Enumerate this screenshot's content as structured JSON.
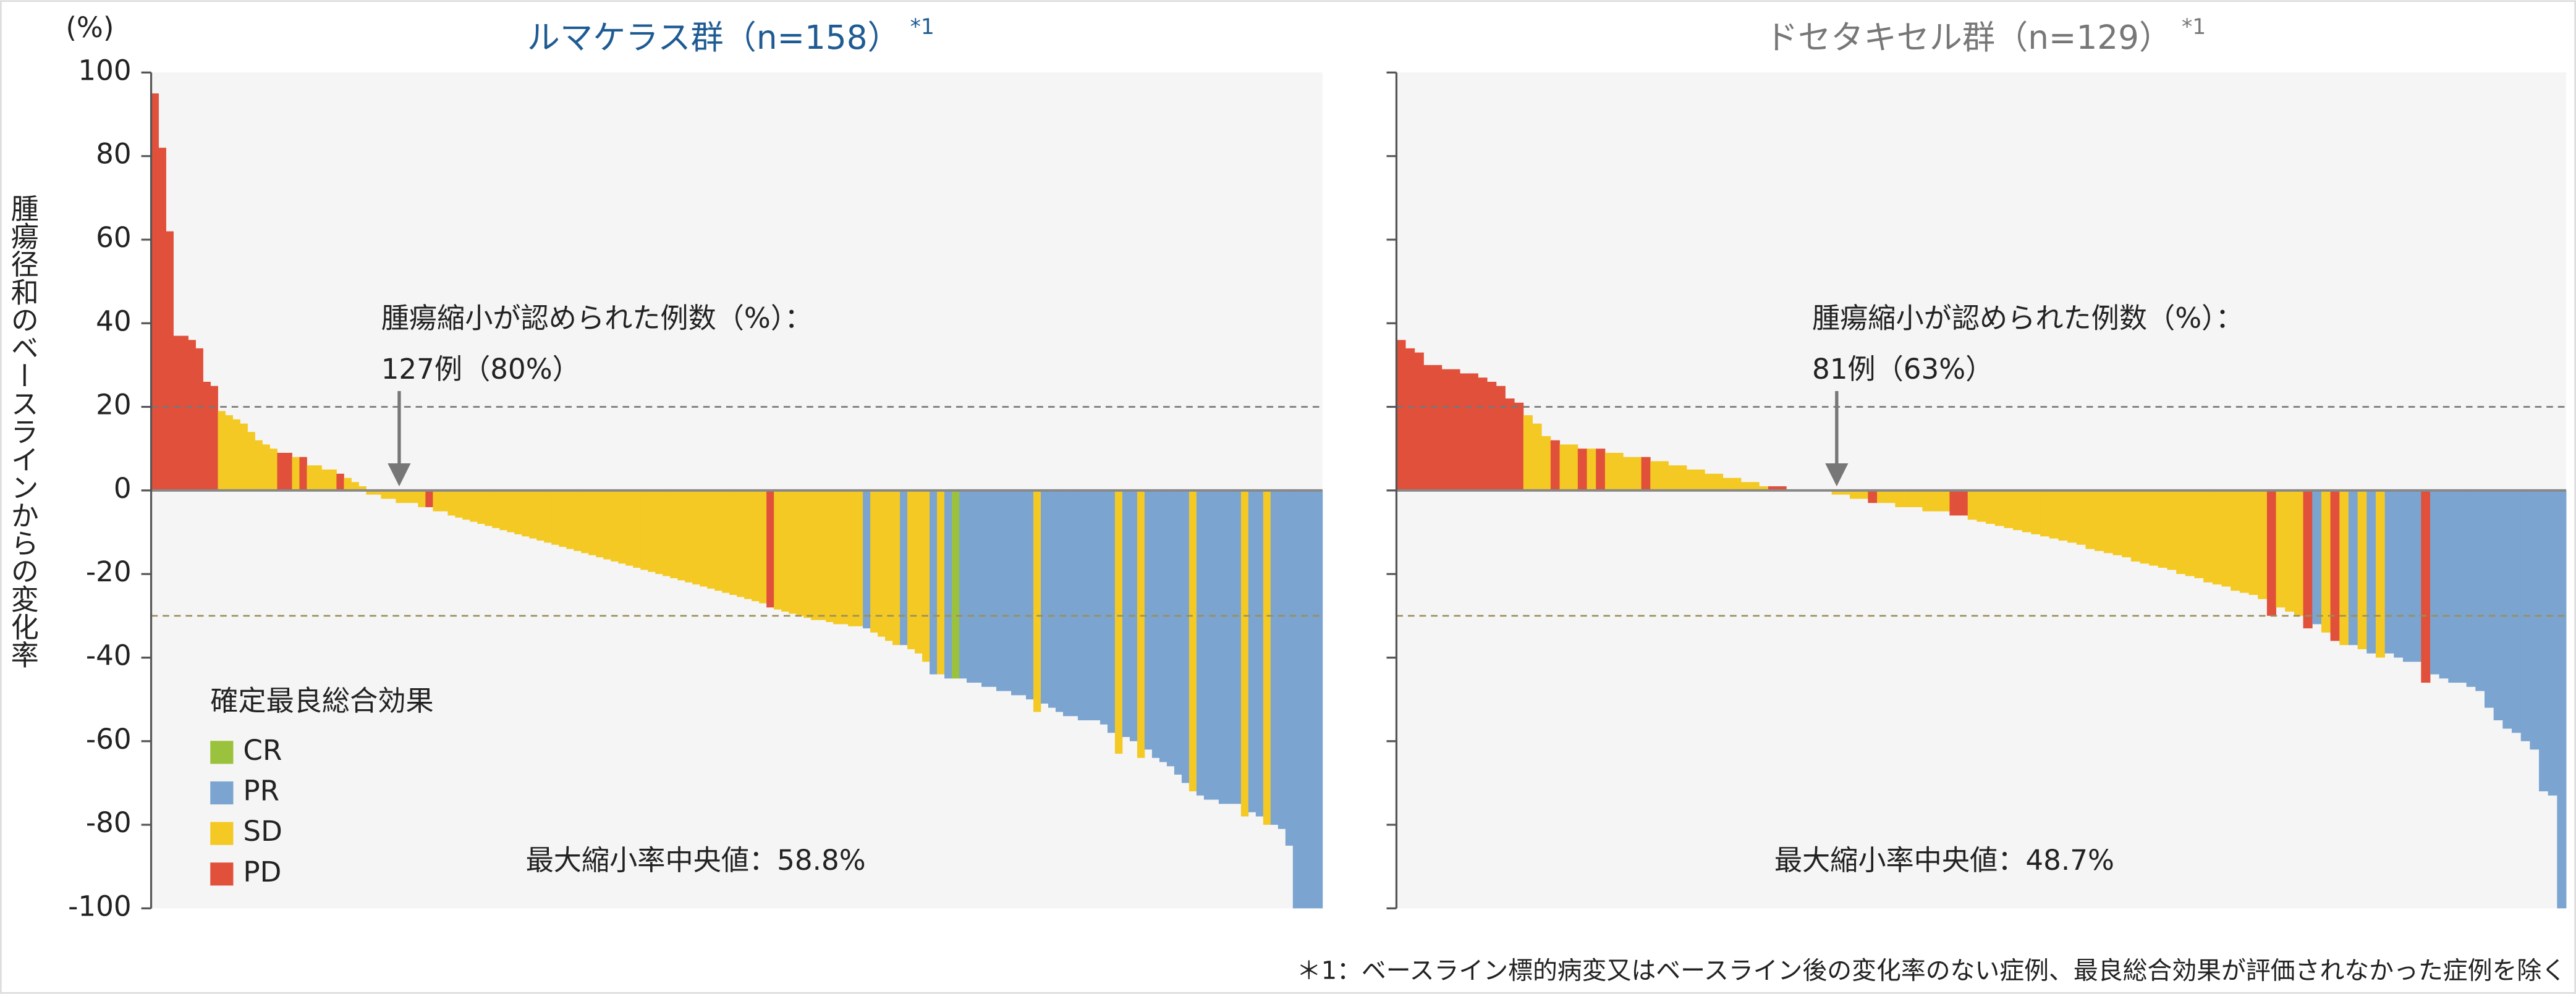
{
  "chart_data": [
    {
      "type": "bar",
      "title": "ルマケラス群（n=158）",
      "title_note": "*1",
      "y_unit": "(%)",
      "y_label": "腫瘍径和のベースラインからの変化率",
      "annotation": [
        "腫瘍縮小が認められた例数（%）：",
        "127例（80%）"
      ],
      "median_label": "最大縮小率中央値：58.8%",
      "legend": {
        "title": "確定最良総合効果",
        "items": [
          {
            "name": "CR",
            "color": "#9bc23c"
          },
          {
            "name": "PR",
            "color": "#7ba4d0"
          },
          {
            "name": "SD",
            "color": "#f4c924"
          },
          {
            "name": "PD",
            "color": "#e0503a"
          }
        ]
      },
      "ylim": [
        -100,
        100
      ],
      "yticks": [
        -100,
        -80,
        -60,
        -40,
        -20,
        0,
        20,
        40,
        60,
        80,
        100
      ],
      "reference_lines": [
        20,
        -30
      ],
      "values": [
        95,
        82,
        62,
        37,
        37,
        36,
        34,
        26,
        25,
        19,
        18,
        17,
        16,
        14,
        12,
        11,
        10,
        9,
        9,
        8,
        8,
        6,
        6,
        5,
        5,
        4,
        3,
        2,
        1,
        -1,
        -1,
        -2,
        -2,
        -3,
        -3,
        -3,
        -4,
        -4,
        -5,
        -5,
        -6,
        -6.5,
        -7,
        -7.5,
        -8,
        -8.5,
        -9,
        -9.5,
        -10,
        -10.5,
        -11,
        -11.5,
        -12,
        -12.5,
        -13,
        -13.5,
        -14,
        -14.5,
        -15,
        -15.5,
        -16,
        -16.5,
        -17,
        -17.5,
        -18,
        -18.5,
        -19,
        -19.5,
        -20,
        -20.5,
        -21,
        -21.5,
        -22,
        -22.5,
        -23,
        -23.5,
        -24,
        -24.5,
        -25,
        -25.5,
        -26,
        -26.5,
        -27,
        -28,
        -28.5,
        -29,
        -29.5,
        -30,
        -30.5,
        -31,
        -31,
        -31.5,
        -32,
        -32,
        -32.5,
        -32.5,
        -33,
        -34,
        -35,
        -36,
        -37,
        -37,
        -38,
        -39,
        -41,
        -44,
        -44,
        -45,
        -45,
        -45,
        -46,
        -46,
        -47,
        -47,
        -48,
        -48,
        -49,
        -49,
        -50,
        -53,
        -51,
        -52,
        -53,
        -54,
        -54,
        -55,
        -55,
        -55,
        -56,
        -58,
        -63,
        -59,
        -60,
        -64,
        -62,
        -64,
        -65,
        -66,
        -68,
        -70,
        -72,
        -73,
        -74,
        -74,
        -75,
        -75,
        -75,
        -78,
        -77,
        -78,
        -80,
        -80,
        -81,
        -85,
        -100,
        -100,
        -100,
        -100
      ],
      "responses": [
        "PD",
        "PD",
        "PD",
        "PD",
        "PD",
        "PD",
        "PD",
        "PD",
        "PD",
        "SD",
        "SD",
        "SD",
        "SD",
        "SD",
        "SD",
        "SD",
        "SD",
        "PD",
        "PD",
        "SD",
        "PD",
        "SD",
        "SD",
        "SD",
        "SD",
        "PD",
        "SD",
        "SD",
        "SD",
        "SD",
        "SD",
        "SD",
        "SD",
        "SD",
        "SD",
        "SD",
        "SD",
        "PD",
        "SD",
        "SD",
        "SD",
        "SD",
        "SD",
        "SD",
        "SD",
        "SD",
        "SD",
        "SD",
        "SD",
        "SD",
        "SD",
        "SD",
        "SD",
        "SD",
        "SD",
        "SD",
        "SD",
        "SD",
        "SD",
        "SD",
        "SD",
        "SD",
        "SD",
        "SD",
        "SD",
        "SD",
        "SD",
        "SD",
        "SD",
        "SD",
        "SD",
        "SD",
        "SD",
        "SD",
        "SD",
        "SD",
        "SD",
        "SD",
        "SD",
        "SD",
        "SD",
        "SD",
        "SD",
        "PD",
        "SD",
        "SD",
        "SD",
        "SD",
        "SD",
        "SD",
        "SD",
        "SD",
        "SD",
        "SD",
        "SD",
        "SD",
        "PR",
        "SD",
        "SD",
        "SD",
        "SD",
        "PR",
        "SD",
        "SD",
        "SD",
        "PR",
        "SD",
        "PR",
        "CR",
        "PR",
        "PR",
        "PR",
        "PR",
        "PR",
        "PR",
        "PR",
        "PR",
        "PR",
        "PR",
        "SD",
        "PR",
        "PR",
        "PR",
        "PR",
        "PR",
        "PR",
        "PR",
        "PR",
        "PR",
        "PR",
        "SD",
        "PR",
        "PR",
        "SD",
        "PR",
        "PR",
        "PR",
        "PR",
        "PR",
        "PR",
        "SD",
        "PR",
        "PR",
        "PR",
        "PR",
        "PR",
        "PR",
        "SD",
        "PR",
        "PR",
        "SD",
        "PR",
        "PR",
        "PR",
        "PR",
        "PR",
        "PR",
        "PR"
      ]
    },
    {
      "type": "bar",
      "title": "ドセタキセル群（n=129）",
      "title_note": "*1",
      "annotation": [
        "腫瘍縮小が認められた例数（%）：",
        "81例（63%）"
      ],
      "median_label": "最大縮小率中央値：48.7%",
      "ylim": [
        -100,
        100
      ],
      "yticks": [
        -100,
        -80,
        -60,
        -40,
        -20,
        0,
        20,
        40,
        60,
        80,
        100
      ],
      "reference_lines": [
        20,
        -30
      ],
      "values": [
        36,
        34,
        33,
        30,
        30,
        29,
        29,
        28,
        28,
        27,
        26,
        25,
        22,
        21,
        18,
        16,
        13,
        12,
        11,
        11,
        10,
        10,
        10,
        9,
        9,
        8,
        8,
        8,
        7,
        7,
        6,
        6,
        5,
        5,
        4,
        4,
        3,
        3,
        2,
        2,
        1,
        1,
        1,
        0,
        0,
        0,
        0,
        0,
        -1,
        -1,
        -2,
        -2,
        -3,
        -3,
        -3,
        -4,
        -4,
        -4,
        -5,
        -5,
        -5,
        -6,
        -6,
        -7,
        -7.5,
        -8,
        -8.5,
        -9,
        -9.5,
        -10,
        -10.5,
        -11,
        -11.5,
        -12,
        -12.5,
        -13,
        -14,
        -14.5,
        -15,
        -15.5,
        -16,
        -17,
        -17.5,
        -18,
        -18.5,
        -19,
        -20,
        -20.5,
        -21,
        -22,
        -22.5,
        -23,
        -24,
        -24.5,
        -25,
        -26,
        -30,
        -28,
        -29,
        -30,
        -33,
        -32,
        -34,
        -36,
        -37,
        -37,
        -38,
        -39,
        -40,
        -39,
        -40,
        -41,
        -41,
        -46,
        -44,
        -45,
        -46,
        -46,
        -47,
        -48,
        -52,
        -55,
        -57,
        -58,
        -60,
        -62,
        -72,
        -73,
        -100
      ],
      "responses": [
        "PD",
        "PD",
        "PD",
        "PD",
        "PD",
        "PD",
        "PD",
        "PD",
        "PD",
        "PD",
        "PD",
        "PD",
        "PD",
        "PD",
        "SD",
        "SD",
        "SD",
        "PD",
        "SD",
        "SD",
        "PD",
        "SD",
        "PD",
        "SD",
        "SD",
        "SD",
        "SD",
        "PD",
        "SD",
        "SD",
        "SD",
        "SD",
        "SD",
        "SD",
        "SD",
        "SD",
        "SD",
        "SD",
        "SD",
        "SD",
        "SD",
        "PD",
        "PD",
        "SD",
        "SD",
        "SD",
        "SD",
        "SD",
        "SD",
        "SD",
        "SD",
        "SD",
        "PD",
        "SD",
        "SD",
        "SD",
        "SD",
        "SD",
        "SD",
        "SD",
        "SD",
        "PD",
        "PD",
        "SD",
        "SD",
        "SD",
        "SD",
        "SD",
        "SD",
        "SD",
        "SD",
        "SD",
        "SD",
        "SD",
        "SD",
        "SD",
        "SD",
        "SD",
        "SD",
        "SD",
        "SD",
        "SD",
        "SD",
        "SD",
        "SD",
        "SD",
        "SD",
        "SD",
        "SD",
        "SD",
        "SD",
        "SD",
        "SD",
        "SD",
        "SD",
        "SD",
        "PD",
        "SD",
        "SD",
        "SD",
        "PD",
        "PR",
        "SD",
        "PD",
        "SD",
        "PR",
        "SD",
        "PR",
        "SD",
        "PR",
        "PR",
        "PR",
        "PR",
        "PD",
        "PR",
        "PR",
        "PR",
        "PR",
        "PR",
        "PR",
        "PR",
        "PR",
        "PR",
        "PR",
        "PR",
        "PR",
        "PR",
        "PR",
        "PR"
      ]
    }
  ],
  "footnote": "＊1：ベースライン標的病変又はベースライン後の変化率のない症例、最良総合効果が評価されなかった症例を除く"
}
